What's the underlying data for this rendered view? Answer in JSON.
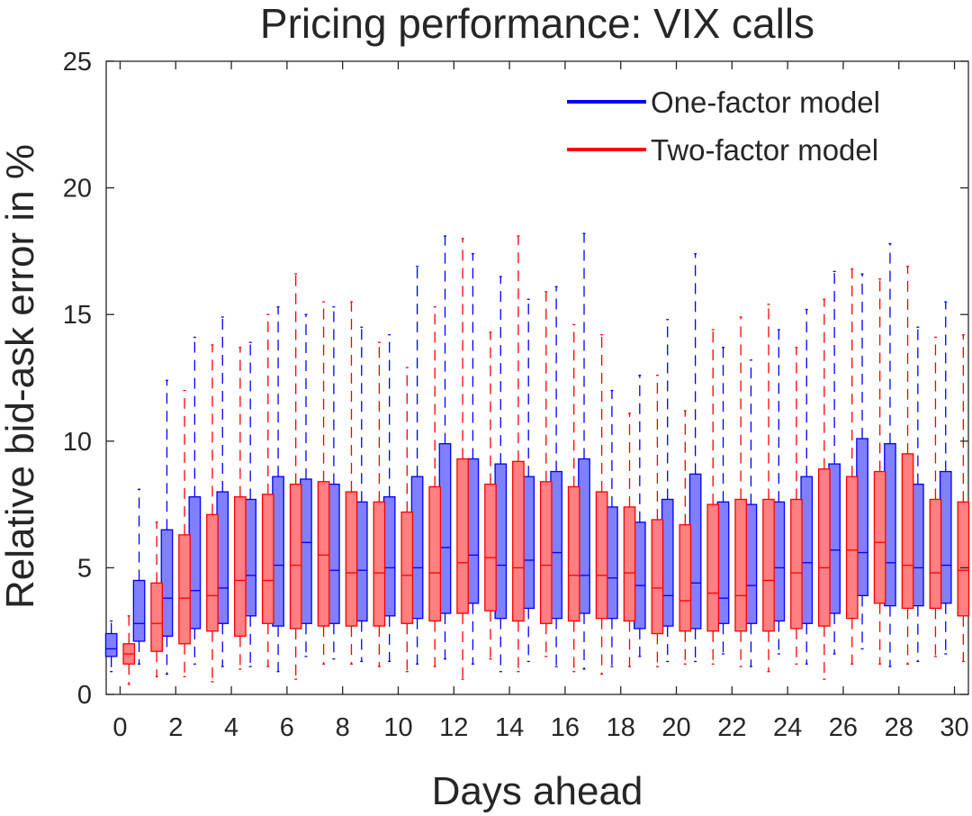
{
  "chart_data": {
    "type": "box",
    "title": "Pricing performance: VIX calls",
    "xlabel": "Days ahead",
    "ylabel": "Relative bid-ask error in %",
    "xlim": [
      -0.5,
      30.5
    ],
    "ylim": [
      0,
      25
    ],
    "xticks": [
      0,
      2,
      4,
      6,
      8,
      10,
      12,
      14,
      16,
      18,
      20,
      22,
      24,
      26,
      28,
      30
    ],
    "yticks": [
      0,
      5,
      10,
      15,
      20,
      25
    ],
    "legend_position": "top-right",
    "x": [
      0,
      1,
      2,
      3,
      4,
      5,
      6,
      7,
      8,
      9,
      10,
      11,
      12,
      13,
      14,
      15,
      16,
      17,
      18,
      19,
      20,
      21,
      22,
      23,
      24,
      25,
      26,
      27,
      28,
      29,
      30
    ],
    "series": [
      {
        "name": "One-factor model",
        "color": "#0000ff",
        "fill": "#8080ff",
        "whisker_low": [
          0.9,
          1.2,
          0.8,
          1.2,
          1.1,
          1.1,
          0.9,
          1.5,
          1.4,
          1.3,
          1.3,
          1.2,
          1.4,
          1.2,
          0.9,
          1.3,
          1.1,
          1.0,
          1.1,
          1.5,
          1.3,
          1.3,
          1.6,
          1.1,
          1.6,
          1.2,
          1.6,
          1.8,
          1.1,
          1.3,
          1.6
        ],
        "q1": [
          1.5,
          2.1,
          2.3,
          2.6,
          2.8,
          3.1,
          2.7,
          2.8,
          2.8,
          2.9,
          3.1,
          3.0,
          3.2,
          3.6,
          3.0,
          3.4,
          3.0,
          3.2,
          3.0,
          2.6,
          2.7,
          2.6,
          2.8,
          2.8,
          2.9,
          2.8,
          3.2,
          3.9,
          3.5,
          3.5,
          3.6
        ],
        "median": [
          1.8,
          2.8,
          3.8,
          4.1,
          4.2,
          4.7,
          5.1,
          6.0,
          4.9,
          4.9,
          5.0,
          5.0,
          5.8,
          5.5,
          5.1,
          5.3,
          5.6,
          4.7,
          4.6,
          4.3,
          3.9,
          4.4,
          3.8,
          4.3,
          5.0,
          5.2,
          5.7,
          5.6,
          5.2,
          5.0,
          5.1
        ],
        "q3": [
          2.4,
          4.5,
          6.5,
          7.8,
          8.0,
          7.7,
          8.6,
          8.5,
          8.3,
          7.6,
          7.8,
          8.6,
          9.9,
          9.3,
          9.1,
          8.6,
          8.8,
          9.3,
          7.4,
          6.8,
          7.7,
          8.7,
          7.6,
          7.5,
          7.6,
          8.6,
          9.1,
          10.1,
          9.9,
          8.3,
          8.8
        ],
        "whisker_high": [
          2.9,
          8.1,
          12.4,
          14.1,
          14.9,
          13.9,
          15.3,
          15.0,
          15.3,
          14.5,
          14.2,
          16.9,
          18.1,
          17.4,
          16.5,
          15.6,
          16.1,
          18.2,
          12.0,
          12.6,
          14.8,
          17.4,
          13.7,
          13.2,
          14.4,
          15.2,
          16.7,
          16.6,
          17.8,
          14.5,
          15.5
        ]
      },
      {
        "name": "Two-factor model",
        "color": "#ff0000",
        "fill": "#ff8080",
        "whisker_low": [
          0.4,
          0.7,
          0.7,
          0.5,
          1.0,
          1.1,
          0.6,
          1.2,
          1.2,
          1.1,
          0.9,
          1.1,
          0.6,
          1.4,
          0.9,
          1.5,
          0.9,
          0.8,
          1.1,
          1.1,
          1.2,
          1.2,
          1.1,
          0.9,
          1.2,
          0.6,
          1.2,
          1.2,
          1.2,
          1.5,
          1.3
        ],
        "q1": [
          1.2,
          1.7,
          2.0,
          2.5,
          2.3,
          2.8,
          2.6,
          2.7,
          2.7,
          2.7,
          2.8,
          2.9,
          3.2,
          3.3,
          2.9,
          2.8,
          2.9,
          3.0,
          2.9,
          2.4,
          2.5,
          2.5,
          2.5,
          2.5,
          2.6,
          2.7,
          3.0,
          3.6,
          3.4,
          3.4,
          3.1
        ],
        "median": [
          1.6,
          2.8,
          3.8,
          3.9,
          4.5,
          4.5,
          5.1,
          5.5,
          4.8,
          4.8,
          4.7,
          4.8,
          5.2,
          5.4,
          5.0,
          5.1,
          4.7,
          4.7,
          4.8,
          4.2,
          3.7,
          4.0,
          3.9,
          4.5,
          4.8,
          5.0,
          5.7,
          6.0,
          5.1,
          4.8,
          4.9
        ],
        "q3": [
          2.0,
          4.4,
          6.3,
          7.1,
          7.8,
          7.9,
          8.3,
          8.4,
          8.0,
          7.6,
          7.2,
          8.2,
          9.3,
          8.3,
          9.2,
          8.4,
          8.2,
          8.0,
          7.4,
          6.9,
          6.7,
          7.5,
          7.7,
          7.7,
          7.7,
          8.9,
          8.6,
          8.8,
          9.5,
          7.7,
          7.6
        ],
        "whisker_high": [
          3.1,
          6.8,
          12.0,
          13.8,
          13.7,
          15.0,
          16.6,
          15.5,
          15.5,
          13.9,
          12.9,
          15.3,
          18.0,
          14.3,
          18.1,
          15.9,
          14.6,
          14.2,
          11.1,
          12.6,
          11.2,
          14.4,
          14.9,
          15.4,
          13.7,
          15.6,
          16.8,
          16.4,
          16.9,
          14.1,
          14.2
        ]
      }
    ]
  }
}
